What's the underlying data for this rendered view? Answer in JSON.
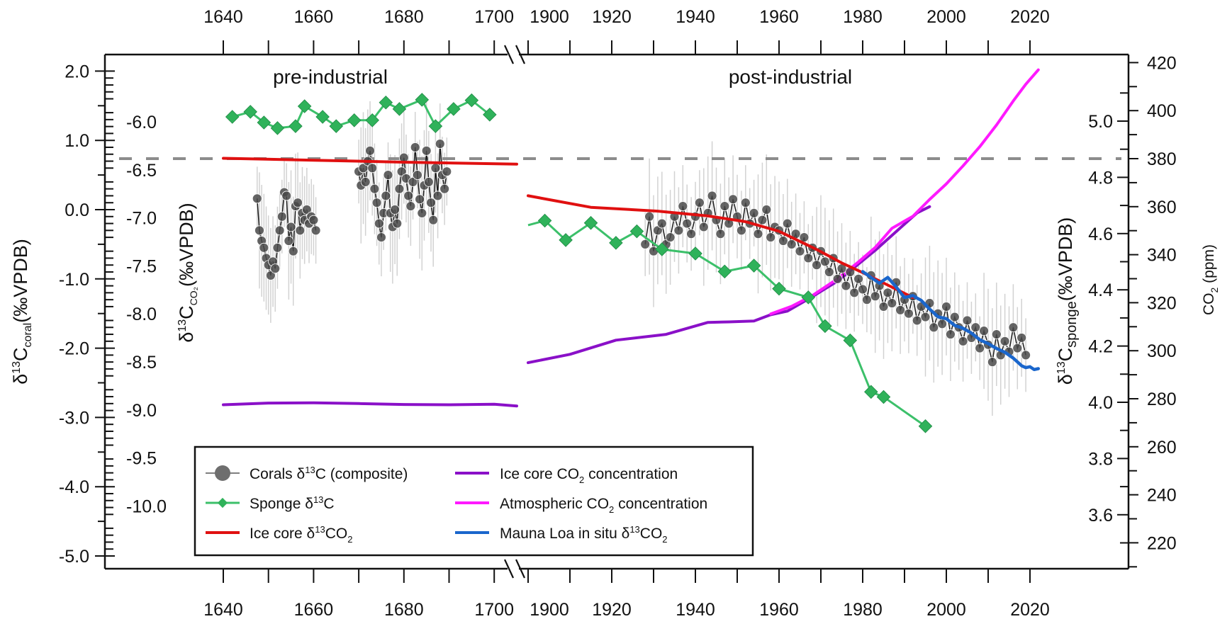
{
  "chart_data": {
    "type": "line",
    "title": "",
    "annotations": [
      "pre-industrial",
      "post-industrial"
    ],
    "x_axis": {
      "label": "",
      "broken": true,
      "segments": [
        {
          "name": "pre-industrial",
          "range": [
            1620,
            1705
          ],
          "ticks": [
            1640,
            1650,
            1660,
            1670,
            1680,
            1690,
            1700
          ],
          "tick_labels": [
            "1640",
            "1660",
            "1680",
            "1700"
          ]
        },
        {
          "name": "post-industrial",
          "range": [
            1900,
            2025
          ],
          "ticks": [
            1900,
            1910,
            1920,
            1930,
            1940,
            1950,
            1960,
            1970,
            1980,
            1990,
            2000,
            2010,
            2020
          ],
          "tick_labels": [
            "1900",
            "1920",
            "1940",
            "1960",
            "1980",
            "2000",
            "2020"
          ]
        }
      ],
      "top_mirror": true
    },
    "y_axes": {
      "coral": {
        "label": "δ13Ccoral(‰VPDB)",
        "label_main": "δ",
        "label_sup": "13",
        "label_c": "C",
        "label_sub": "coral",
        "label_unit": "(‰VPDB)",
        "range": [
          -5.0,
          2.0
        ],
        "ticks": [
          "2.0",
          "1.0",
          "0.0",
          "-1.0",
          "-2.0",
          "-3.0",
          "-4.0",
          "-5.0"
        ],
        "tick_values": [
          2,
          1,
          0,
          -1,
          -2,
          -3,
          -4,
          -5
        ]
      },
      "co2_isotope": {
        "label": "δ13CCO2(‰VPDB)",
        "label_main": "δ",
        "label_sup": "13",
        "label_c": "C",
        "label_sub": "CO₂",
        "label_unit": "(‰VPDB)",
        "ticks": [
          "-6.0",
          "-6.5",
          "-7.0",
          "-7.5",
          "-8.0",
          "-8.5",
          "-9.0",
          "-9.5",
          "-10.0"
        ],
        "tick_values": [
          -6.0,
          -6.5,
          -7.0,
          -7.5,
          -8.0,
          -8.5,
          -9.0,
          -9.5,
          -10.0
        ]
      },
      "sponge": {
        "label": "δ13Csponge(‰VPDB)",
        "label_main": "δ",
        "label_sup": "13",
        "label_c": "C",
        "label_sub": "sponge",
        "label_unit": "(‰VPDB)",
        "ticks": [
          "5.0",
          "4.8",
          "4.6",
          "4.4",
          "4.2",
          "4.0",
          "3.8",
          "3.6"
        ],
        "tick_values": [
          5.0,
          4.8,
          4.6,
          4.4,
          4.2,
          4.0,
          3.8,
          3.6
        ]
      },
      "co2": {
        "label": "CO2 (ppm)",
        "label_main": "CO",
        "label_sub": "2",
        "label_unit": " (ppm)",
        "ticks": [
          "420",
          "400",
          "380",
          "360",
          "340",
          "320",
          "300",
          "280",
          "260",
          "240",
          "220"
        ],
        "tick_values": [
          420,
          400,
          380,
          360,
          340,
          320,
          300,
          280,
          260,
          240,
          220
        ]
      }
    },
    "reference_line": {
      "axis": "co2",
      "value": 380,
      "style": "dashed",
      "color": "#8c8c8c"
    },
    "legend": {
      "placement": "bottom-left",
      "entries": [
        {
          "key": "coral",
          "label": "Corals δ13C (composite)",
          "parts": [
            "Corals δ",
            "13",
            "C (composite)"
          ]
        },
        {
          "key": "sponge",
          "label": "Sponge δ13C",
          "parts": [
            "Sponge δ",
            "13",
            "C"
          ]
        },
        {
          "key": "ice_d13c",
          "label": "Ice core δ13CO2",
          "parts": [
            "Ice core δ",
            "13",
            "CO",
            "2"
          ]
        },
        {
          "key": "ice_co2",
          "label": "Ice core CO2 concentration",
          "parts": [
            "Ice core CO",
            "2",
            " concentration"
          ]
        },
        {
          "key": "atm_co2",
          "label": "Atmospheric CO2 concentration",
          "parts": [
            "Atmospheric CO",
            "2",
            " concentration"
          ]
        },
        {
          "key": "mauna_loa",
          "label": "Mauna Loa in situ δ13CO2",
          "parts": [
            "Mauna Loa in situ δ",
            "13",
            "CO",
            "2"
          ]
        }
      ]
    },
    "colors": {
      "coral": "#4a4a4a",
      "coral_err": "#c8c8c8",
      "sponge": "#3cc06a",
      "sponge_marker": "#2fb25a",
      "ice_d13c": "#e01010",
      "ice_co2": "#8a10c8",
      "atm_co2": "#ff19ff",
      "mauna_loa": "#1a66cc",
      "reference": "#8c8c8c"
    },
    "series": [
      {
        "name": "Corals δ13C (composite)",
        "key": "coral",
        "axis": "coral",
        "error_bars": true,
        "segments": [
          {
            "x": [
              1647.5,
              1648,
              1648.5,
              1649,
              1649.5,
              1650,
              1650.5,
              1651,
              1651.5,
              1652,
              1652.5,
              1653,
              1653.5,
              1654,
              1654.5,
              1655,
              1655.5,
              1656,
              1656.5,
              1657,
              1657.5,
              1658,
              1658.5,
              1659,
              1659.5,
              1660,
              1660.5
            ],
            "y": [
              0.16,
              -0.3,
              -0.45,
              -0.55,
              -0.7,
              -0.8,
              -0.95,
              -0.75,
              -0.85,
              -0.55,
              -0.3,
              -0.1,
              0.25,
              0.2,
              -0.45,
              -0.25,
              -0.6,
              0.05,
              0.1,
              -0.3,
              -0.05,
              -0.15,
              0.0,
              -0.2,
              -0.1,
              -0.15,
              -0.3
            ]
          },
          {
            "x": [
              1670,
              1670.5,
              1671,
              1671.5,
              1672,
              1672.5,
              1673,
              1673.5,
              1674,
              1674.5,
              1675,
              1675.5,
              1676,
              1676.5,
              1677,
              1677.5,
              1678,
              1678.5,
              1679,
              1679.5,
              1680,
              1680.5,
              1681,
              1681.5,
              1682,
              1682.5,
              1683,
              1683.5,
              1684,
              1684.5,
              1685,
              1685.5,
              1686,
              1686.5,
              1687,
              1687.5,
              1688,
              1688.5,
              1689,
              1689.5
            ],
            "y": [
              0.55,
              0.35,
              0.6,
              0.4,
              0.7,
              0.85,
              0.6,
              0.3,
              0.1,
              -0.2,
              -0.4,
              -0.05,
              0.2,
              0.5,
              -0.05,
              -0.25,
              0.0,
              -0.2,
              0.3,
              0.55,
              0.75,
              0.45,
              0.2,
              0.05,
              0.4,
              0.9,
              0.5,
              0.15,
              -0.05,
              0.35,
              0.85,
              0.4,
              0.1,
              -0.15,
              0.6,
              0.2,
              0.95,
              0.5,
              0.3,
              0.55
            ]
          },
          {
            "x": [
              1928,
              1929,
              1930,
              1931,
              1932,
              1933,
              1934,
              1935,
              1936,
              1937,
              1938,
              1939,
              1940,
              1941,
              1942,
              1943,
              1944,
              1945,
              1946,
              1947,
              1948,
              1949,
              1950,
              1951,
              1952,
              1953,
              1954,
              1955,
              1956,
              1957,
              1958,
              1959,
              1960,
              1961,
              1962,
              1963,
              1964,
              1965,
              1966,
              1967,
              1968,
              1969,
              1970,
              1971,
              1972,
              1973,
              1974,
              1975,
              1976,
              1977,
              1978,
              1979,
              1980,
              1981,
              1982,
              1983,
              1984,
              1985,
              1986,
              1987,
              1988,
              1989,
              1990,
              1991,
              1992,
              1993,
              1994,
              1995,
              1996,
              1997,
              1998,
              1999,
              2000,
              2001,
              2002,
              2003,
              2004,
              2005,
              2006,
              2007,
              2008,
              2009,
              2010,
              2011,
              2012,
              2013,
              2014,
              2015,
              2016,
              2017,
              2018,
              2019
            ],
            "y": [
              -0.5,
              -0.1,
              -0.6,
              -0.3,
              -0.2,
              -0.5,
              -0.4,
              -0.1,
              -0.3,
              0.05,
              -0.2,
              -0.35,
              -0.1,
              0.1,
              -0.25,
              -0.05,
              0.2,
              -0.15,
              -0.35,
              0.05,
              -0.2,
              0.15,
              -0.1,
              -0.3,
              0.1,
              -0.2,
              -0.05,
              -0.35,
              -0.15,
              0.0,
              -0.4,
              -0.25,
              -0.3,
              -0.45,
              -0.2,
              -0.5,
              -0.35,
              -0.6,
              -0.4,
              -0.7,
              -0.55,
              -0.8,
              -0.6,
              -0.75,
              -0.9,
              -0.7,
              -1.0,
              -0.85,
              -1.1,
              -0.9,
              -1.2,
              -1.0,
              -1.15,
              -1.3,
              -0.95,
              -1.25,
              -1.1,
              -1.4,
              -1.2,
              -1.35,
              -1.05,
              -1.45,
              -1.3,
              -1.5,
              -1.25,
              -1.6,
              -1.4,
              -1.55,
              -1.35,
              -1.7,
              -1.5,
              -1.65,
              -1.4,
              -1.8,
              -1.55,
              -1.7,
              -1.9,
              -1.6,
              -1.85,
              -1.7,
              -2.0,
              -1.75,
              -1.95,
              -2.2,
              -1.8,
              -2.1,
              -1.9,
              -2.05,
              -1.7,
              -2.0,
              -1.85,
              -2.1
            ]
          }
        ]
      },
      {
        "name": "Sponge δ13C",
        "key": "sponge",
        "axis": "sponge",
        "marker": "diamond",
        "segments": [
          {
            "x": [
              1642,
              1646,
              1649,
              1652,
              1656,
              1658,
              1662,
              1665,
              1669,
              1673,
              1676,
              1679,
              1684,
              1687,
              1691,
              1695,
              1699
            ],
            "y": [
              5.015,
              5.033,
              4.995,
              4.975,
              4.982,
              5.053,
              5.015,
              4.982,
              5.003,
              5.003,
              5.066,
              5.043,
              5.076,
              4.982,
              5.043,
              5.074,
              5.023
            ]
          },
          {
            "x": [
              1900,
              1904,
              1909,
              1915,
              1921,
              1926,
              1932,
              1940,
              1947,
              1954,
              1960,
              1967,
              1971,
              1977,
              1982,
              1985,
              1995
            ],
            "y": [
              4.63,
              4.646,
              4.577,
              4.638,
              4.567,
              4.608,
              4.544,
              4.529,
              4.465,
              4.486,
              4.404,
              4.373,
              4.271,
              4.22,
              4.037,
              4.019,
              3.915
            ],
            "markers_from_index": 1
          }
        ]
      },
      {
        "name": "Ice core δ13CO2",
        "key": "ice_d13c",
        "axis": "co2_isotope",
        "segments": [
          {
            "x": [
              1640,
              1660,
              1680,
              1705
            ],
            "y": [
              -6.38,
              -6.4,
              -6.42,
              -6.44
            ]
          },
          {
            "x": [
              1900,
              1915,
              1931,
              1943,
              1952,
              1960,
              1969,
              1975,
              1980,
              1986,
              1992
            ],
            "y": [
              -6.77,
              -6.89,
              -6.93,
              -6.98,
              -7.04,
              -7.14,
              -7.33,
              -7.47,
              -7.57,
              -7.7,
              -7.83
            ]
          }
        ]
      },
      {
        "name": "Ice core CO2 concentration",
        "key": "ice_co2",
        "axis": "co2",
        "segments": [
          {
            "x": [
              1640,
              1650,
              1660,
              1670,
              1680,
              1690,
              1700,
              1705
            ],
            "y": [
              277.5,
              278.2,
              278.3,
              278.0,
              277.6,
              277.5,
              277.7,
              277.0
            ]
          },
          {
            "x": [
              1900,
              1910,
              1921,
              1933,
              1943,
              1948,
              1954,
              1958,
              1962,
              1967,
              1974,
              1983,
              1993,
              1996
            ],
            "y": [
              295,
              298.5,
              304.4,
              306.8,
              311.8,
              312,
              312.4,
              315,
              316.5,
              321.5,
              329,
              341.8,
              357.4,
              360
            ]
          }
        ]
      },
      {
        "name": "Atmospheric CO2 concentration",
        "key": "atm_co2",
        "axis": "co2",
        "segments": [
          {
            "x": [
              1958,
              1963,
              1968,
              1974,
              1979,
              1983,
              1987,
              1992,
              1996,
              2000,
              2004,
              2008,
              2012,
              2016,
              2019,
              2022
            ],
            "y": [
              315.3,
              318.5,
              323,
              330,
              337,
              343,
              351,
              356,
              363,
              369.5,
              377,
              385,
              394,
              404,
              411,
              417
            ]
          }
        ]
      },
      {
        "name": "Mauna Loa in situ δ13CO2",
        "key": "mauna_loa",
        "axis": "co2_isotope",
        "segments": [
          {
            "x": [
              1980,
              1982,
              1984,
              1986,
              1988,
              1990,
              1992,
              1994,
              1996,
              1998,
              2000,
              2002,
              2004,
              2006,
              2008,
              2010,
              2012,
              2014,
              2016,
              2018,
              2019,
              2020,
              2021,
              2022
            ],
            "y": [
              -7.56,
              -7.62,
              -7.68,
              -7.62,
              -7.72,
              -7.83,
              -7.81,
              -7.86,
              -7.95,
              -8.03,
              -8.05,
              -8.12,
              -8.15,
              -8.2,
              -8.27,
              -8.31,
              -8.36,
              -8.4,
              -8.46,
              -8.54,
              -8.56,
              -8.55,
              -8.58,
              -8.57
            ]
          }
        ]
      }
    ]
  }
}
